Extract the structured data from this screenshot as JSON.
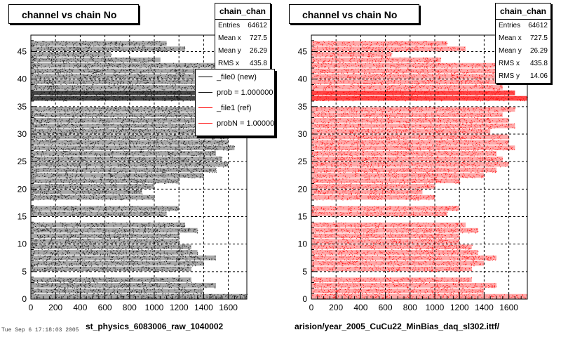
{
  "panels": [
    {
      "title": "channel vs chain No",
      "color": "#000000",
      "stats": {
        "name": "chain_chan",
        "rows": [
          {
            "label": "Entries",
            "value": "64612"
          },
          {
            "label": "Mean x",
            "value": "727.5"
          },
          {
            "label": "Mean y",
            "value": "26.29"
          },
          {
            "label": "RMS x",
            "value": "435.8"
          }
        ]
      },
      "legend": [
        {
          "text": "_file0 (new)",
          "color": "#000000"
        },
        {
          "text": "prob = 1.000000",
          "color": "#000000"
        },
        {
          "text": "_file1 (ref)",
          "color": "#ff0000"
        },
        {
          "text": "probN = 1.000000",
          "color": "#ff0000"
        }
      ],
      "footer": "st_physics_6083006_raw_1040002"
    },
    {
      "title": "channel vs chain No",
      "color": "#ff0000",
      "stats": {
        "name": "chain_chan",
        "rows": [
          {
            "label": "Entries",
            "value": "64612"
          },
          {
            "label": "Mean x",
            "value": "727.5"
          },
          {
            "label": "Mean y",
            "value": "26.29"
          },
          {
            "label": "RMS x",
            "value": "435.8"
          },
          {
            "label": "RMS y",
            "value": "14.06"
          }
        ]
      },
      "footer": "arision/year_2005_CuCu22_MinBias_daq_sl302.ittf/"
    }
  ],
  "stamp": "Tue Sep 6 17:18:03 2005",
  "chart_data": [
    {
      "type": "scatter",
      "title": "channel vs chain No",
      "xlim": [
        0,
        1750
      ],
      "ylim": [
        0,
        48
      ],
      "xticks": [
        0,
        200,
        400,
        600,
        800,
        1000,
        1200,
        1400,
        1600
      ],
      "yticks": [
        0,
        5,
        10,
        15,
        20,
        25,
        30,
        35,
        40,
        45
      ],
      "grid": true,
      "series": [
        {
          "name": "_file0 (new)",
          "color": "#000000",
          "rows_chain": [
            1,
            2,
            3,
            4,
            6,
            7,
            8,
            9,
            10,
            11,
            12,
            13,
            14,
            16,
            17,
            19,
            20,
            21,
            22,
            23,
            24,
            25,
            26,
            27,
            28,
            29,
            30,
            31,
            32,
            33,
            34,
            35,
            37,
            38,
            39,
            40,
            41,
            42,
            43,
            44,
            45,
            46,
            47
          ],
          "rows_max_channel": [
            1750,
            1400,
            1500,
            1300,
            1300,
            1400,
            1500,
            1350,
            1300,
            1200,
            1200,
            1350,
            1250,
            1100,
            1200,
            1000,
            900,
            1000,
            1200,
            1400,
            1500,
            1600,
            1550,
            1500,
            1650,
            1600,
            1600,
            1450,
            1650,
            1600,
            1550,
            1650,
            1750,
            1650,
            1550,
            1600,
            1550,
            1600,
            1700,
            1050,
            650,
            1250,
            1100
          ]
        }
      ]
    },
    {
      "type": "scatter",
      "title": "channel vs chain No",
      "xlim": [
        0,
        1750
      ],
      "ylim": [
        0,
        48
      ],
      "xticks": [
        0,
        200,
        400,
        600,
        800,
        1000,
        1200,
        1400,
        1600
      ],
      "yticks": [
        0,
        5,
        10,
        15,
        20,
        25,
        30,
        35,
        40,
        45
      ],
      "grid": true,
      "series": [
        {
          "name": "_file1 (ref)",
          "color": "#ff0000",
          "rows_chain": [
            1,
            2,
            3,
            4,
            6,
            7,
            8,
            9,
            10,
            11,
            12,
            13,
            14,
            16,
            17,
            19,
            20,
            21,
            22,
            23,
            24,
            25,
            26,
            27,
            28,
            29,
            30,
            31,
            32,
            33,
            34,
            35,
            37,
            38,
            39,
            40,
            41,
            42,
            43,
            44,
            45,
            46,
            47
          ],
          "rows_max_channel": [
            1750,
            1400,
            1500,
            1300,
            1300,
            1400,
            1500,
            1350,
            1300,
            1200,
            1200,
            1350,
            1250,
            1100,
            1200,
            1000,
            900,
            1000,
            1200,
            1400,
            1500,
            1600,
            1550,
            1500,
            1650,
            1600,
            1600,
            1450,
            1650,
            1600,
            1550,
            1650,
            1750,
            1650,
            1550,
            1600,
            1550,
            1600,
            1700,
            1050,
            650,
            1250,
            1100
          ]
        }
      ]
    }
  ]
}
